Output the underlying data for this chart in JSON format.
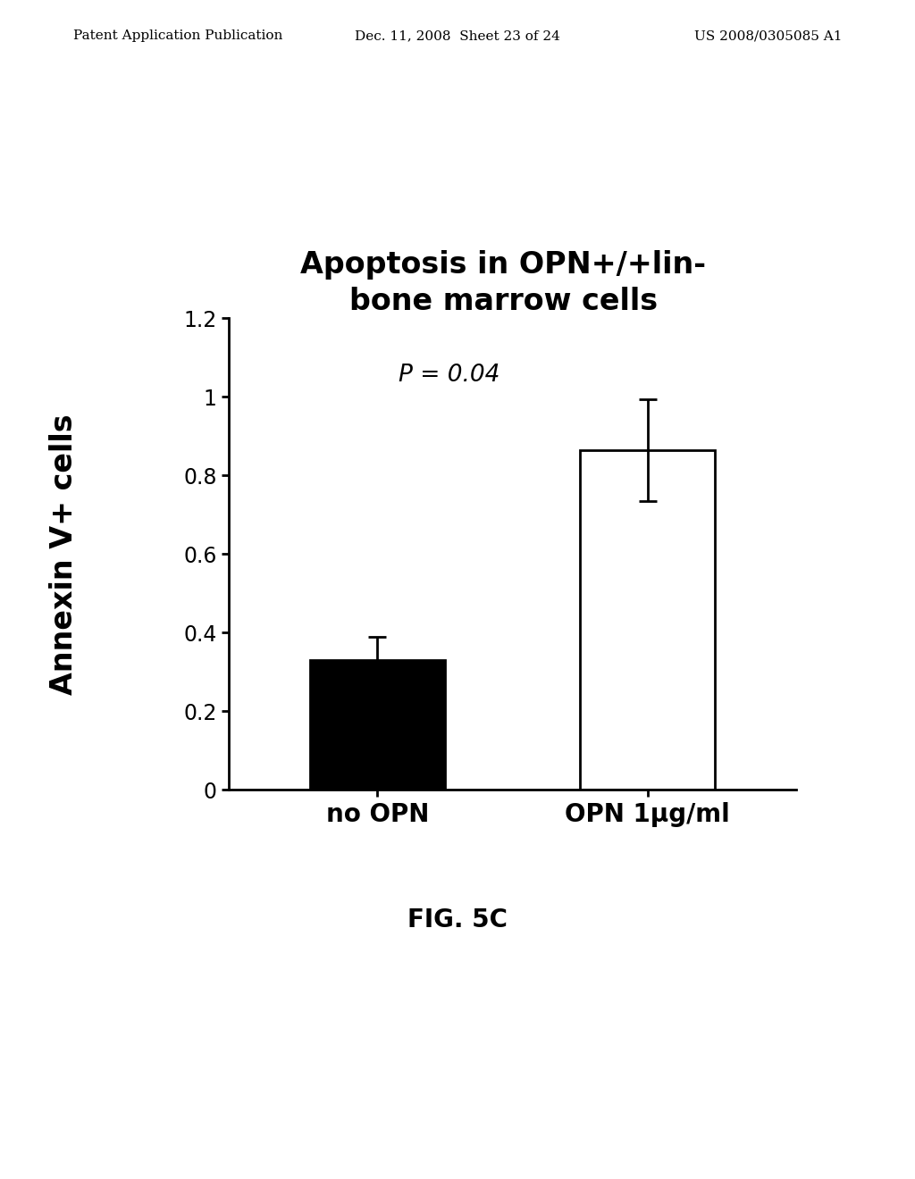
{
  "title_line1": "Apoptosis in OPN+/+lin-",
  "title_line2": "bone marrow cells",
  "categories": [
    "no OPN",
    "OPN 1μg/ml"
  ],
  "values": [
    0.33,
    0.865
  ],
  "errors": [
    0.06,
    0.13
  ],
  "bar_colors": [
    "#000000",
    "#ffffff"
  ],
  "bar_edgecolors": [
    "#000000",
    "#000000"
  ],
  "ylabel": "Annexin V+ cells",
  "ylim": [
    0,
    1.2
  ],
  "yticks": [
    0,
    0.2,
    0.4,
    0.6,
    0.8,
    1.0,
    1.2
  ],
  "annotation": "P = 0.04",
  "fig_caption": "FIG. 5C",
  "header_left": "Patent Application Publication",
  "header_center": "Dec. 11, 2008  Sheet 23 of 24",
  "header_right": "US 2008/0305085 A1",
  "background_color": "#ffffff",
  "title_fontsize": 24,
  "ylabel_fontsize": 24,
  "tick_fontsize": 17,
  "annotation_fontsize": 19,
  "caption_fontsize": 20,
  "header_fontsize": 11
}
